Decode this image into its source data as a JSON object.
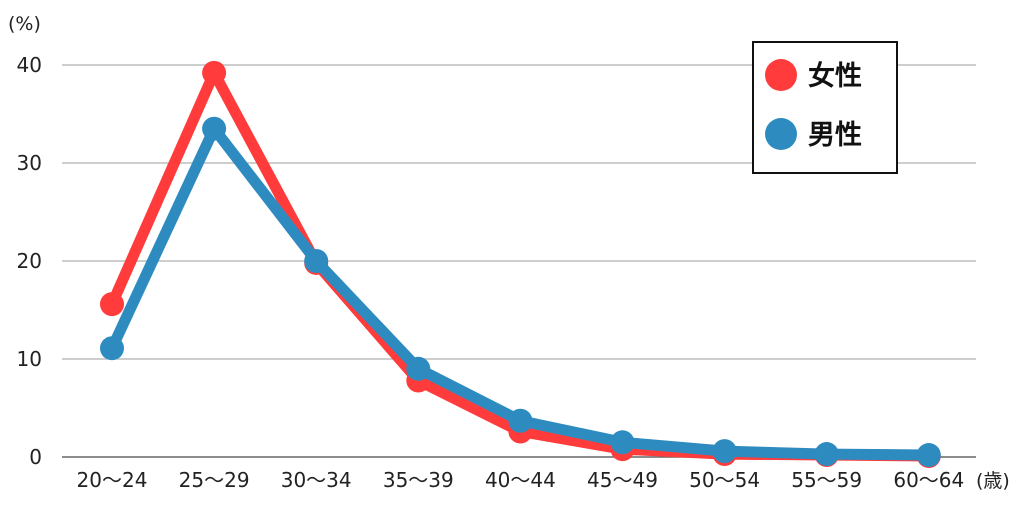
{
  "chart_data": {
    "type": "line",
    "ylabel": "(%)",
    "xlabel": "(歳)",
    "categories": [
      "20〜24",
      "25〜29",
      "30〜34",
      "35〜39",
      "40〜44",
      "45〜49",
      "50〜54",
      "55〜59",
      "60〜64"
    ],
    "ylim": [
      0,
      40
    ],
    "yticks": [
      0,
      10,
      20,
      30,
      40
    ],
    "grid": true,
    "legend_position": "top-right",
    "series": [
      {
        "name": "女性",
        "color": "#ff3b3b",
        "values": [
          15.6,
          39.2,
          19.8,
          7.8,
          2.6,
          0.8,
          0.3,
          0.2,
          0.1
        ]
      },
      {
        "name": "男性",
        "color": "#2e8bc0",
        "values": [
          11.1,
          33.5,
          20.0,
          9.0,
          3.7,
          1.5,
          0.6,
          0.3,
          0.2
        ]
      }
    ]
  }
}
